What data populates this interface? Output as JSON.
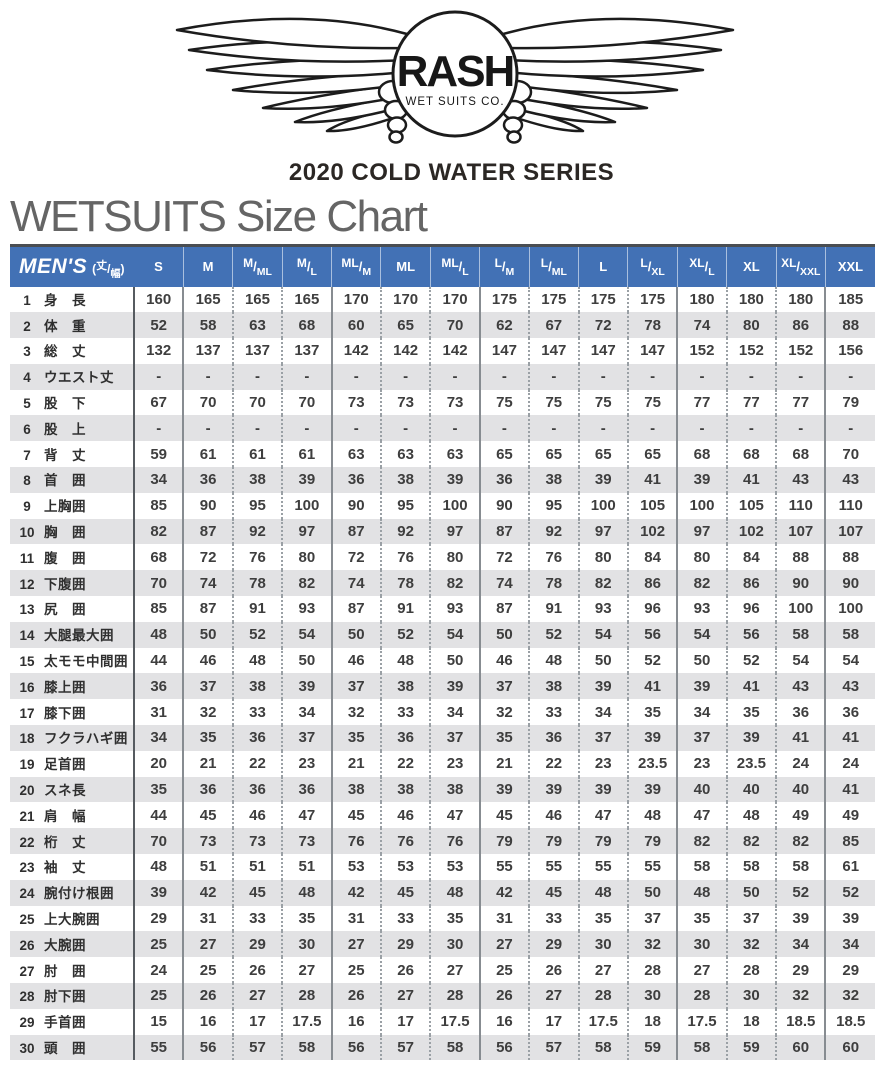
{
  "logo": {
    "brand": "RASH",
    "sub": "WET SUITS CO."
  },
  "series_title": "2020 COLD WATER SERIES",
  "page_title": "WETSUITS Size Chart",
  "table": {
    "corner": {
      "label": "MEN'S",
      "unit_top": "丈",
      "unit_bottom": "幅"
    },
    "size_columns": [
      "S",
      "M",
      "M/ML",
      "M/L",
      "ML/M",
      "ML",
      "ML/L",
      "L/M",
      "L/ML",
      "L",
      "L/XL",
      "XL/L",
      "XL",
      "XL/XXL",
      "XXL"
    ],
    "rows": [
      {
        "no": 1,
        "label": "身　長",
        "values": [
          160,
          165,
          165,
          165,
          170,
          170,
          170,
          175,
          175,
          175,
          175,
          180,
          180,
          180,
          185
        ]
      },
      {
        "no": 2,
        "label": "体　重",
        "values": [
          52,
          58,
          63,
          68,
          60,
          65,
          70,
          62,
          67,
          72,
          78,
          74,
          80,
          86,
          88
        ]
      },
      {
        "no": 3,
        "label": "総　丈",
        "values": [
          132,
          137,
          137,
          137,
          142,
          142,
          142,
          147,
          147,
          147,
          147,
          152,
          152,
          152,
          156
        ]
      },
      {
        "no": 4,
        "label": "ウエスト丈",
        "values": [
          "-",
          "-",
          "-",
          "-",
          "-",
          "-",
          "-",
          "-",
          "-",
          "-",
          "-",
          "-",
          "-",
          "-",
          "-"
        ]
      },
      {
        "no": 5,
        "label": "股　下",
        "values": [
          67,
          70,
          70,
          70,
          73,
          73,
          73,
          75,
          75,
          75,
          75,
          77,
          77,
          77,
          79
        ]
      },
      {
        "no": 6,
        "label": "股　上",
        "values": [
          "-",
          "-",
          "-",
          "-",
          "-",
          "-",
          "-",
          "-",
          "-",
          "-",
          "-",
          "-",
          "-",
          "-",
          "-"
        ]
      },
      {
        "no": 7,
        "label": "背　丈",
        "values": [
          59,
          61,
          61,
          61,
          63,
          63,
          63,
          65,
          65,
          65,
          65,
          68,
          68,
          68,
          70
        ]
      },
      {
        "no": 8,
        "label": "首　囲",
        "values": [
          34,
          36,
          38,
          39,
          36,
          38,
          39,
          36,
          38,
          39,
          41,
          39,
          41,
          43,
          43
        ]
      },
      {
        "no": 9,
        "label": "上胸囲",
        "values": [
          85,
          90,
          95,
          100,
          90,
          95,
          100,
          90,
          95,
          100,
          105,
          100,
          105,
          110,
          110
        ]
      },
      {
        "no": 10,
        "label": "胸　囲",
        "values": [
          82,
          87,
          92,
          97,
          87,
          92,
          97,
          87,
          92,
          97,
          102,
          97,
          102,
          107,
          107
        ]
      },
      {
        "no": 11,
        "label": "腹　囲",
        "values": [
          68,
          72,
          76,
          80,
          72,
          76,
          80,
          72,
          76,
          80,
          84,
          80,
          84,
          88,
          88
        ]
      },
      {
        "no": 12,
        "label": "下腹囲",
        "values": [
          70,
          74,
          78,
          82,
          74,
          78,
          82,
          74,
          78,
          82,
          86,
          82,
          86,
          90,
          90
        ]
      },
      {
        "no": 13,
        "label": "尻　囲",
        "values": [
          85,
          87,
          91,
          93,
          87,
          91,
          93,
          87,
          91,
          93,
          96,
          93,
          96,
          100,
          100
        ]
      },
      {
        "no": 14,
        "label": "大腿最大囲",
        "values": [
          48,
          50,
          52,
          54,
          50,
          52,
          54,
          50,
          52,
          54,
          56,
          54,
          56,
          58,
          58
        ]
      },
      {
        "no": 15,
        "label": "太モモ中間囲",
        "values": [
          44,
          46,
          48,
          50,
          46,
          48,
          50,
          46,
          48,
          50,
          52,
          50,
          52,
          54,
          54
        ]
      },
      {
        "no": 16,
        "label": "膝上囲",
        "values": [
          36,
          37,
          38,
          39,
          37,
          38,
          39,
          37,
          38,
          39,
          41,
          39,
          41,
          43,
          43
        ]
      },
      {
        "no": 17,
        "label": "膝下囲",
        "values": [
          31,
          32,
          33,
          34,
          32,
          33,
          34,
          32,
          33,
          34,
          35,
          34,
          35,
          36,
          36
        ]
      },
      {
        "no": 18,
        "label": "フクラハギ囲",
        "values": [
          34,
          35,
          36,
          37,
          35,
          36,
          37,
          35,
          36,
          37,
          39,
          37,
          39,
          41,
          41
        ]
      },
      {
        "no": 19,
        "label": "足首囲",
        "values": [
          20,
          21,
          22,
          23,
          21,
          22,
          23,
          21,
          22,
          23,
          23.5,
          23,
          23.5,
          24,
          24
        ]
      },
      {
        "no": 20,
        "label": "スネ長",
        "values": [
          35,
          36,
          36,
          36,
          38,
          38,
          38,
          39,
          39,
          39,
          39,
          40,
          40,
          40,
          41
        ]
      },
      {
        "no": 21,
        "label": "肩　幅",
        "values": [
          44,
          45,
          46,
          47,
          45,
          46,
          47,
          45,
          46,
          47,
          48,
          47,
          48,
          49,
          49
        ]
      },
      {
        "no": 22,
        "label": "桁　丈",
        "values": [
          70,
          73,
          73,
          73,
          76,
          76,
          76,
          79,
          79,
          79,
          79,
          82,
          82,
          82,
          85
        ]
      },
      {
        "no": 23,
        "label": "袖　丈",
        "values": [
          48,
          51,
          51,
          51,
          53,
          53,
          53,
          55,
          55,
          55,
          55,
          58,
          58,
          58,
          61
        ]
      },
      {
        "no": 24,
        "label": "腕付け根囲",
        "values": [
          39,
          42,
          45,
          48,
          42,
          45,
          48,
          42,
          45,
          48,
          50,
          48,
          50,
          52,
          52
        ]
      },
      {
        "no": 25,
        "label": "上大腕囲",
        "values": [
          29,
          31,
          33,
          35,
          31,
          33,
          35,
          31,
          33,
          35,
          37,
          35,
          37,
          39,
          39
        ]
      },
      {
        "no": 26,
        "label": "大腕囲",
        "values": [
          25,
          27,
          29,
          30,
          27,
          29,
          30,
          27,
          29,
          30,
          32,
          30,
          32,
          34,
          34
        ]
      },
      {
        "no": 27,
        "label": "肘　囲",
        "values": [
          24,
          25,
          26,
          27,
          25,
          26,
          27,
          25,
          26,
          27,
          28,
          27,
          28,
          29,
          29
        ]
      },
      {
        "no": 28,
        "label": "肘下囲",
        "values": [
          25,
          26,
          27,
          28,
          26,
          27,
          28,
          26,
          27,
          28,
          30,
          28,
          30,
          32,
          32
        ]
      },
      {
        "no": 29,
        "label": "手首囲",
        "values": [
          15,
          16,
          17,
          17.5,
          16,
          17,
          17.5,
          16,
          17,
          17.5,
          18,
          17.5,
          18,
          18.5,
          18.5
        ]
      },
      {
        "no": 30,
        "label": "頭　囲",
        "values": [
          55,
          56,
          57,
          58,
          56,
          57,
          58,
          56,
          57,
          58,
          59,
          58,
          59,
          60,
          60
        ]
      }
    ],
    "colors": {
      "header_bg": "#4271b5",
      "stripe": "#e2e2e4",
      "grid_solid": "#878c91",
      "grid_dotted": "#9aa0a5",
      "label_divider": "#565b60",
      "top_border": "#4a4e52"
    }
  }
}
